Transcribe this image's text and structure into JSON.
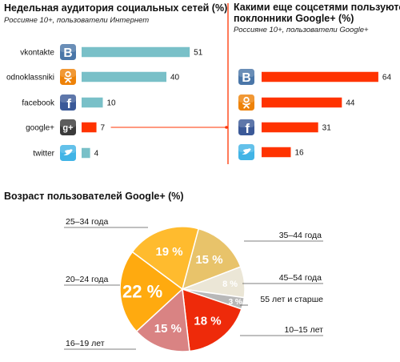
{
  "chart_data": [
    {
      "type": "bar",
      "orientation": "horizontal",
      "title": "Недельная аудитория социальных сетей (%)",
      "subtitle": "Россияне 10+, пользователи Интернет",
      "categories": [
        "vkontakte",
        "odnoklassniki",
        "facebook",
        "google+",
        "twitter"
      ],
      "values": [
        51,
        40,
        10,
        7,
        4
      ],
      "icons": [
        "vk-icon",
        "odnoklassniki-icon",
        "facebook-icon",
        "google-plus-icon",
        "twitter-icon"
      ],
      "bar_color": "#79c0c8",
      "highlight_category": "google+",
      "highlight_color": "#ff3300",
      "xlim": [
        0,
        60
      ]
    },
    {
      "type": "bar",
      "orientation": "horizontal",
      "title": "Какими еще соцсетями пользуются поклонники Google+ (%)",
      "title_lines": [
        "Какими еще соцсетями пользуются",
        "поклонники Google+ (%)"
      ],
      "subtitle": "Россияне 10+, пользователи Google+",
      "categories": [
        "vkontakte",
        "odnoklassniki",
        "facebook",
        "twitter"
      ],
      "values": [
        64,
        44,
        31,
        16
      ],
      "icons": [
        "vk-icon",
        "odnoklassniki-icon",
        "facebook-icon",
        "twitter-icon"
      ],
      "bar_color": "#ff3300",
      "xlim": [
        0,
        70
      ]
    },
    {
      "type": "pie",
      "title": "Возраст пользователей Google+ (%)",
      "slices": [
        {
          "label": "35–44 года",
          "value": 15,
          "display": "15 %",
          "color": "#e8c36a"
        },
        {
          "label": "45–54 года",
          "value": 8,
          "display": "8 %",
          "color": "#ebe6d6"
        },
        {
          "label": "55 лет и старше",
          "value": 3,
          "display": "3 %",
          "color": "#b8b8b8"
        },
        {
          "label": "10–15 лет",
          "value": 18,
          "display": "18 %",
          "color": "#ee2a0a"
        },
        {
          "label": "16–19 лет",
          "value": 15,
          "display": "15 %",
          "color": "#d98383"
        },
        {
          "label": "20–24 года",
          "value": 22,
          "display": "22 %",
          "color": "#ffaa0f"
        },
        {
          "label": "25–34 года",
          "value": 19,
          "display": "19 %",
          "color": "#ffbb2e"
        }
      ]
    }
  ]
}
